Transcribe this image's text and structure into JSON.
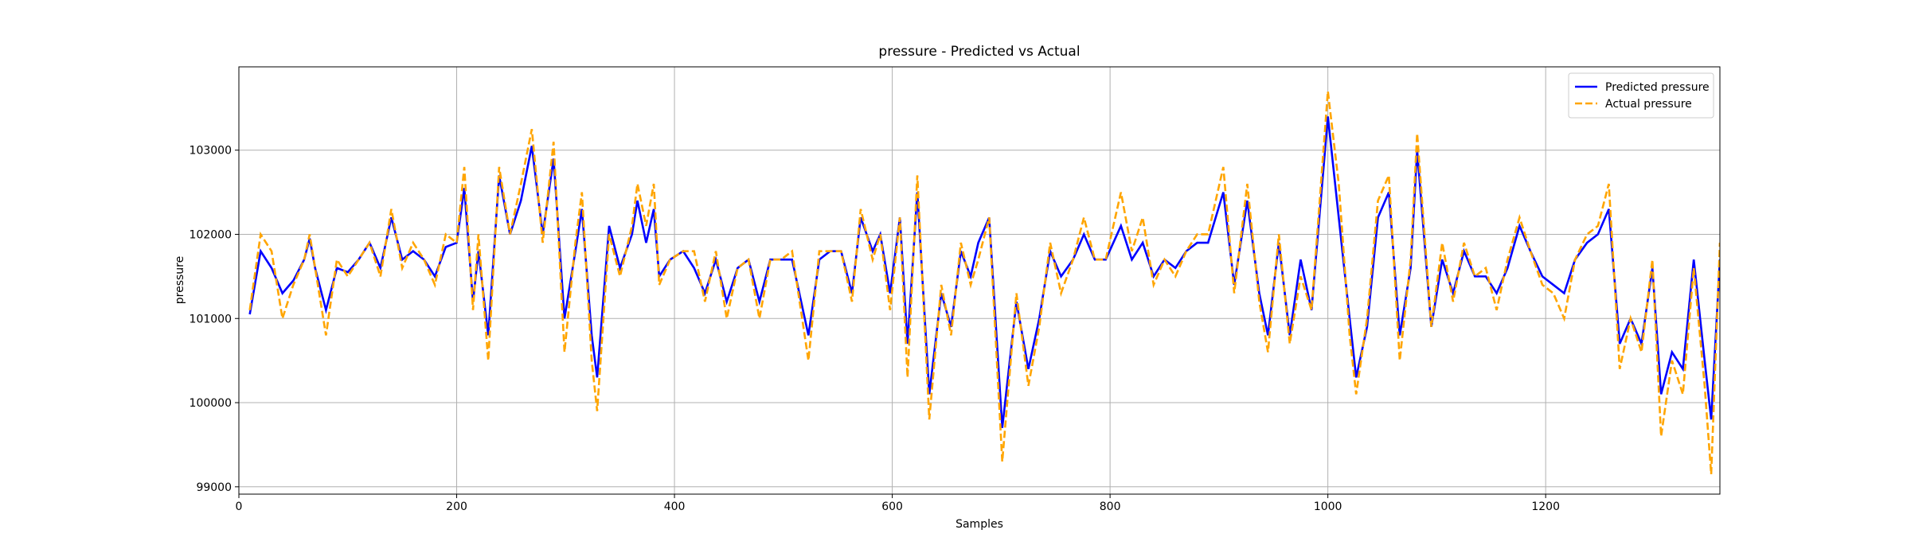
{
  "chart_data": {
    "type": "line",
    "title": "pressure - Predicted vs Actual",
    "x_label": "Samples",
    "y_label": "pressure",
    "x": [
      10,
      20,
      30,
      40,
      50,
      60,
      65,
      70,
      80,
      90,
      100,
      110,
      120,
      130,
      140,
      150,
      160,
      170,
      180,
      190,
      200,
      207,
      215,
      220,
      229,
      239,
      249,
      259,
      269,
      279,
      289,
      299,
      309,
      315,
      324,
      329,
      340,
      350,
      361,
      366,
      374,
      381,
      386,
      396,
      408,
      418,
      428,
      438,
      448,
      458,
      468,
      478,
      488,
      498,
      508,
      523,
      533,
      543,
      553,
      563,
      571,
      582,
      589,
      598,
      607,
      614,
      623,
      634,
      645,
      654,
      663,
      672,
      679,
      689,
      701,
      714,
      725,
      735,
      745,
      755,
      766,
      776,
      786,
      796,
      810,
      820,
      830,
      840,
      850,
      860,
      870,
      880,
      890,
      904,
      914,
      926,
      937,
      945,
      955,
      965,
      975,
      985,
      1000,
      1010,
      1020,
      1026,
      1036,
      1046,
      1056,
      1066,
      1076,
      1082,
      1095,
      1105,
      1115,
      1125,
      1135,
      1145,
      1155,
      1165,
      1176,
      1186,
      1197,
      1207,
      1217,
      1227,
      1238,
      1248,
      1258,
      1268,
      1278,
      1288,
      1298,
      1306,
      1316,
      1326,
      1336,
      1346,
      1352,
      1360
    ],
    "series": [
      {
        "name": "Predicted pressure",
        "color": "#0000ff",
        "line_style": "solid",
        "values": [
          101050,
          101800,
          101600,
          101300,
          101450,
          101700,
          101950,
          101600,
          101100,
          101600,
          101550,
          101700,
          101900,
          101600,
          102200,
          101700,
          101800,
          101700,
          101500,
          101850,
          101900,
          102550,
          101200,
          101800,
          100800,
          102700,
          102000,
          102400,
          103050,
          102000,
          102900,
          101000,
          101800,
          102300,
          100800,
          100300,
          102100,
          101600,
          102000,
          102400,
          101900,
          102300,
          101500,
          101700,
          101800,
          101600,
          101300,
          101700,
          101200,
          101600,
          101700,
          101200,
          101700,
          101700,
          101700,
          100800,
          101700,
          101800,
          101800,
          101300,
          102200,
          101800,
          102000,
          101300,
          102200,
          100700,
          102500,
          100100,
          101300,
          100900,
          101800,
          101500,
          101900,
          102200,
          99700,
          101200,
          100400,
          101000,
          101800,
          101500,
          101700,
          102000,
          101700,
          101700,
          102100,
          101700,
          101900,
          101500,
          101700,
          101600,
          101800,
          101900,
          101900,
          102500,
          101400,
          102400,
          101300,
          100800,
          101900,
          100800,
          101700,
          101100,
          103400,
          102200,
          101000,
          100300,
          100900,
          102200,
          102500,
          100800,
          101600,
          103000,
          100900,
          101700,
          101300,
          101800,
          101500,
          101500,
          101300,
          101600,
          102100,
          101800,
          101500,
          101400,
          101300,
          101700,
          101900,
          102000,
          102300,
          100700,
          101000,
          100700,
          101600,
          100100,
          100600,
          100400,
          101700,
          100500,
          99800,
          101700
        ]
      },
      {
        "name": "Actual pressure",
        "color": "#ffa500",
        "line_style": "dashed",
        "values": [
          101100,
          102000,
          101800,
          101000,
          101400,
          101700,
          102000,
          101600,
          100800,
          101700,
          101500,
          101700,
          101900,
          101500,
          102300,
          101600,
          101900,
          101700,
          101400,
          102000,
          101900,
          102800,
          101100,
          102000,
          100500,
          102800,
          102000,
          102600,
          103250,
          101900,
          103100,
          100600,
          101900,
          102500,
          100500,
          99900,
          102000,
          101500,
          102100,
          102600,
          102100,
          102600,
          101400,
          101700,
          101800,
          101800,
          101200,
          101800,
          101000,
          101600,
          101700,
          101000,
          101700,
          101700,
          101800,
          100500,
          101800,
          101800,
          101800,
          101200,
          102300,
          101700,
          102000,
          101100,
          102200,
          100300,
          102700,
          99800,
          101400,
          100800,
          101900,
          101400,
          101700,
          102200,
          99300,
          101300,
          100200,
          100900,
          101900,
          101300,
          101700,
          102200,
          101700,
          101700,
          102500,
          101800,
          102200,
          101400,
          101700,
          101500,
          101800,
          102000,
          102000,
          102800,
          101300,
          102600,
          101200,
          100600,
          102000,
          100700,
          101500,
          101100,
          103700,
          102600,
          100800,
          100100,
          101000,
          102400,
          102700,
          100500,
          101700,
          103200,
          100900,
          101900,
          101200,
          101900,
          101500,
          101600,
          101100,
          101700,
          102200,
          101800,
          101400,
          101300,
          101000,
          101700,
          102000,
          102100,
          102600,
          100400,
          101000,
          100600,
          101700,
          99600,
          100500,
          100100,
          101600,
          100200,
          99150,
          101900
        ]
      }
    ],
    "xlim": [
      0,
      1360
    ],
    "xticks": [
      0,
      200,
      400,
      600,
      800,
      1000,
      1200
    ],
    "ylim": [
      98913,
      103990
    ],
    "yticks": [
      99000,
      100000,
      101000,
      102000,
      103000
    ],
    "grid": true,
    "legend": "upper right"
  }
}
